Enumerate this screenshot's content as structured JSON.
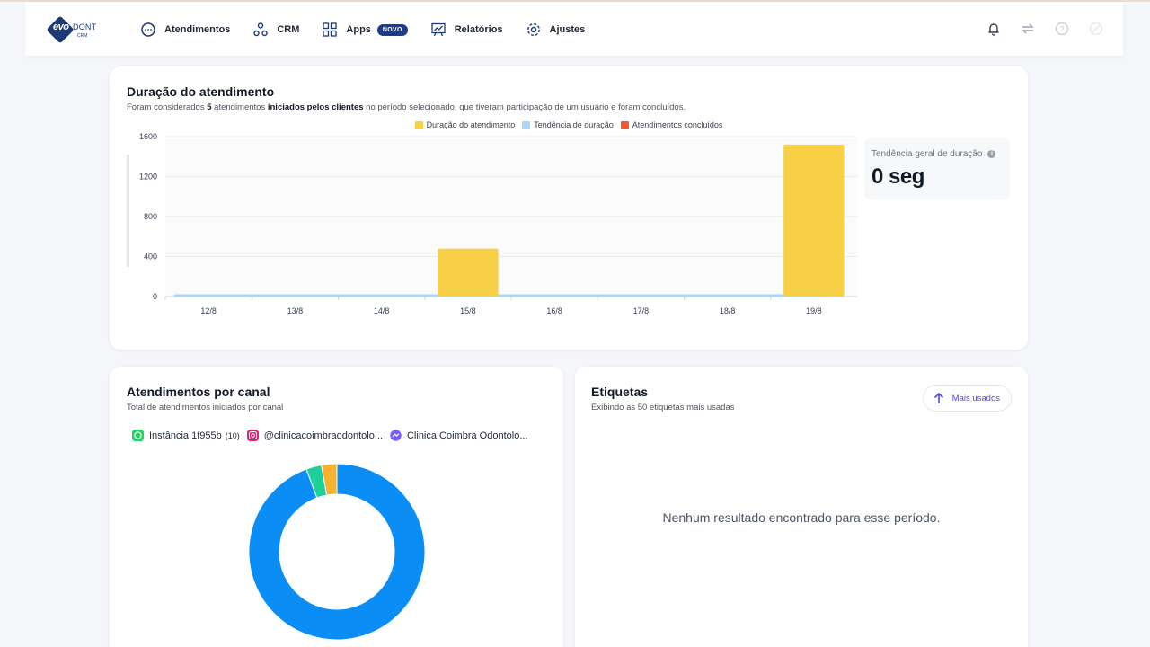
{
  "brand": {
    "logo_text": "evo",
    "logo_text2": "DONT",
    "logo_sub": "CRM"
  },
  "nav": {
    "items": [
      {
        "label": "Atendimentos",
        "icon": "chat-bubble-icon"
      },
      {
        "label": "CRM",
        "icon": "crm-nodes-icon"
      },
      {
        "label": "Apps",
        "icon": "apps-grid-icon",
        "badge": "NOVO"
      },
      {
        "label": "Relatórios",
        "icon": "report-chart-icon"
      },
      {
        "label": "Ajustes",
        "icon": "gear-icon"
      }
    ]
  },
  "top_icons": [
    "bell-icon",
    "swap-arrows-icon",
    "help-icon",
    "status-off-icon"
  ],
  "duration_card": {
    "title": "Duração do atendimento",
    "subtitle_pre": "Foram considerados ",
    "subtitle_count": "5",
    "subtitle_mid": " atendimentos ",
    "subtitle_bold": "iniciados pelos clientes",
    "subtitle_post": " no período selecionado, que tiveram participação de um usuário e foram concluídos.",
    "trend_label": "Tendência geral de duração",
    "trend_value": "0 seg"
  },
  "chart_data": {
    "type": "bar",
    "categories": [
      "12/8",
      "13/8",
      "14/8",
      "15/8",
      "16/8",
      "17/8",
      "18/8",
      "19/8"
    ],
    "series": [
      {
        "name": "Duração do atendimento",
        "type": "bar",
        "color": "#f7d046",
        "values": [
          0,
          0,
          0,
          480,
          0,
          0,
          0,
          1520
        ]
      },
      {
        "name": "Tendência de duração",
        "type": "line",
        "color": "#a8d8f5",
        "values": [
          0,
          0,
          0,
          0,
          0,
          0,
          0,
          0
        ]
      },
      {
        "name": "Atendimentos concluídos",
        "type": "bar",
        "color": "#ef5a34",
        "values": [
          0,
          0,
          0,
          0,
          0,
          0,
          0,
          0
        ]
      }
    ],
    "ylim": [
      0,
      1600
    ],
    "yticks": [
      0,
      400,
      800,
      1200,
      1600
    ],
    "grid": true,
    "legend": "top-center"
  },
  "canal_card": {
    "title": "Atendimentos por canal",
    "subtitle": "Total de atendimentos iniciados por canal",
    "channels": [
      {
        "label": "Instância 1f955b",
        "count": "(10)",
        "icon": "whatsapp-icon",
        "color": "#25d366"
      },
      {
        "label": "@clinicacoimbraodontolo...",
        "icon": "instagram-icon",
        "color": "#d62976"
      },
      {
        "label": "Clinica Coimbra Odontolo...",
        "icon": "messenger-icon",
        "color": "#7b5cff"
      }
    ],
    "donut": [
      {
        "label": "Instância 1f955b",
        "value": 10,
        "color": "#0a8ef5"
      },
      {
        "label": "@clinicacoimbraodontolo...",
        "value": 0.3,
        "color": "#1fcf9a"
      },
      {
        "label": "Clinica Coimbra Odontolo...",
        "value": 0.3,
        "color": "#f7b22e"
      }
    ]
  },
  "tags_card": {
    "title": "Etiquetas",
    "subtitle": "Exibindo as 50 etiquetas mais usadas",
    "sort_button": "Mais usados",
    "empty_message": "Nenhum resultado encontrado para esse período."
  }
}
